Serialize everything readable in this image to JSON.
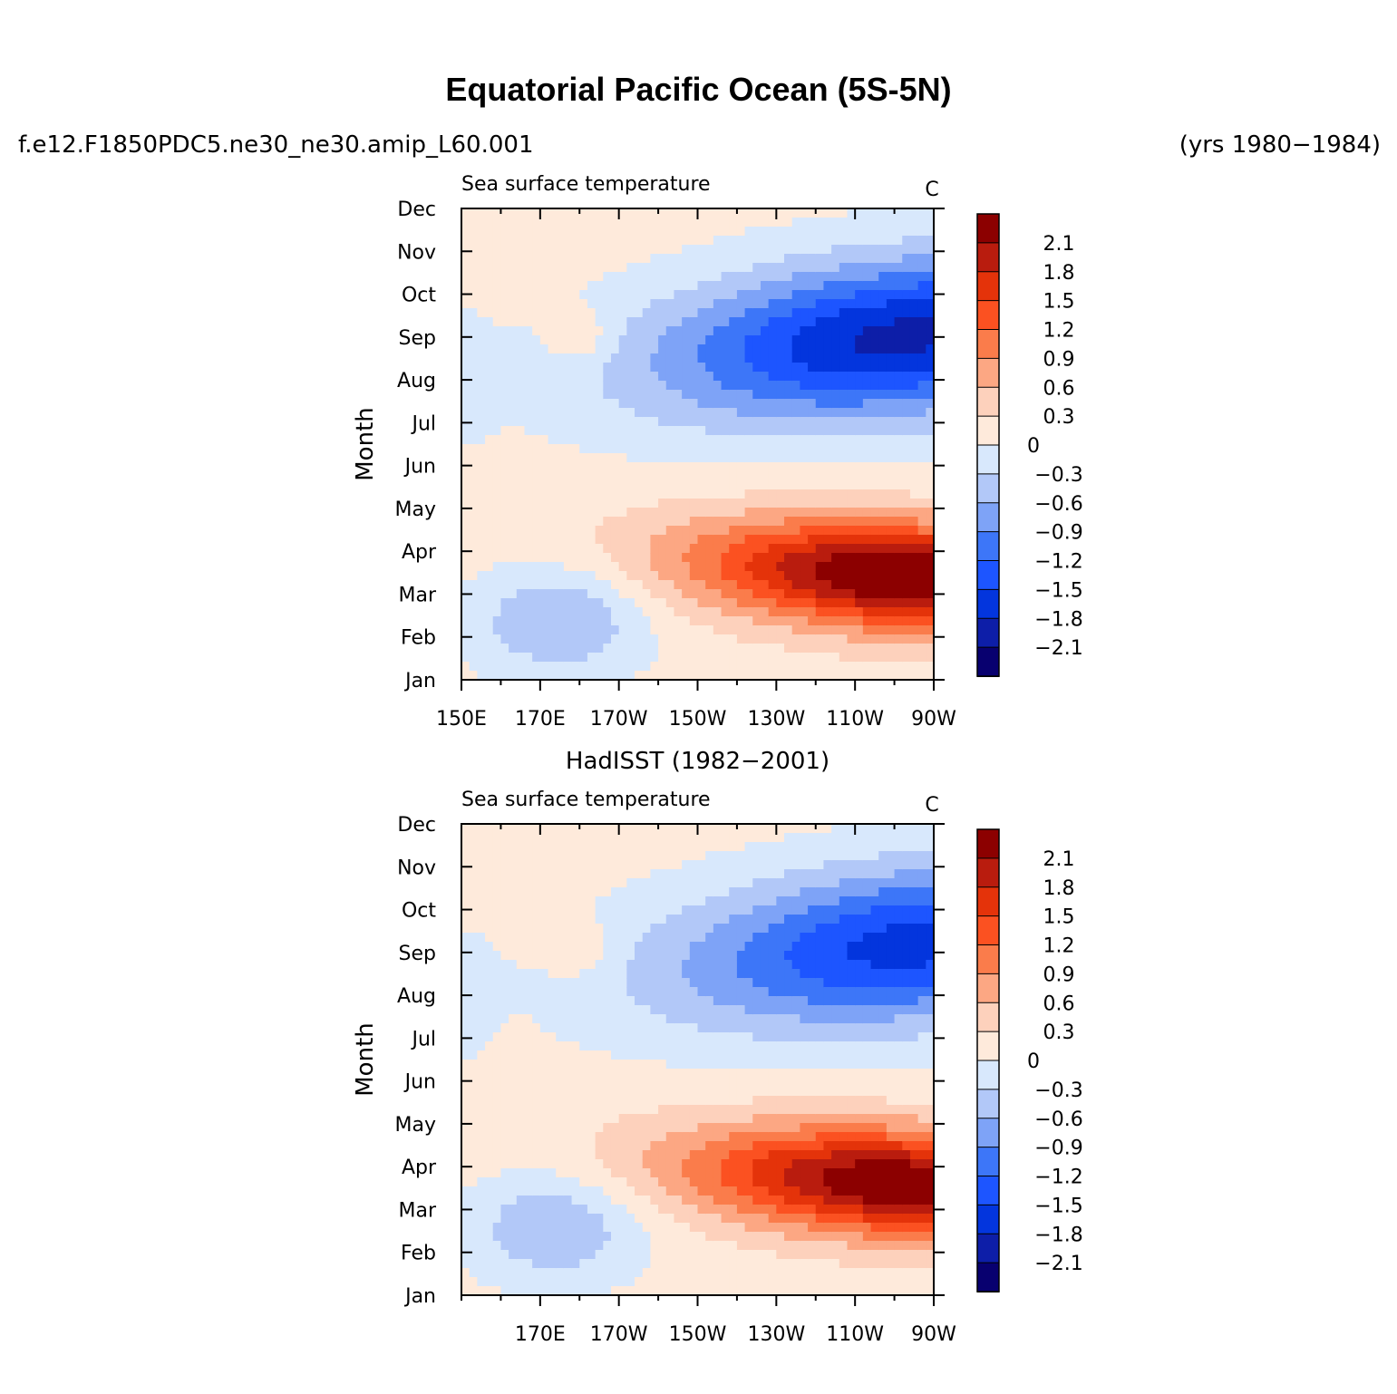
{
  "header": {
    "title": "Equatorial Pacific Ocean (5S-5N)",
    "case_name": "f.e12.F1850PDC5.ne30_ne30.amip_L60.001",
    "years": "(yrs 1980−1984)"
  },
  "colors": {
    "palette": [
      "#08006f",
      "#0d1ea8",
      "#0335dd",
      "#1d55ff",
      "#3d76f8",
      "#7ea3f7",
      "#b2c8f8",
      "#d8e8fc",
      "#feeadb",
      "#fdd1bc",
      "#fca783",
      "#fa7c4b",
      "#fb5121",
      "#e4330a",
      "#b91c0e",
      "#8c0000"
    ]
  },
  "chart_data": [
    {
      "type": "heatmap",
      "title": "",
      "left_string": "Sea surface temperature",
      "right_string": "C",
      "xlabel": "",
      "ylabel": "Month",
      "x_tick_labels": [
        "150E",
        "170E",
        "170W",
        "150W",
        "130W",
        "110W",
        "90W"
      ],
      "x_tick_values": [
        150,
        170,
        190,
        210,
        230,
        250,
        270
      ],
      "xlim": [
        150,
        270
      ],
      "y_tick_labels": [
        "Jan",
        "Feb",
        "Mar",
        "Apr",
        "May",
        "Jun",
        "Jul",
        "Aug",
        "Sep",
        "Oct",
        "Nov",
        "Dec"
      ],
      "ylim": [
        1,
        12
      ],
      "colorbar_labels": [
        "2.1",
        "1.8",
        "1.5",
        "1.2",
        "0.9",
        "0.6",
        "0.3",
        "0",
        "−0.3",
        "−0.6",
        "−0.9",
        "−1.2",
        "−1.5",
        "−1.8",
        "−2.1"
      ],
      "contour_levels": [
        -2.1,
        -1.8,
        -1.5,
        -1.2,
        -0.9,
        -0.6,
        -0.3,
        0,
        0.3,
        0.6,
        0.9,
        1.2,
        1.5,
        1.8,
        2.1
      ],
      "field_features": {
        "warm_max": {
          "lon": 263,
          "month": 3.4,
          "value": 2.4
        },
        "cool_min": {
          "lon": 262,
          "month": 9.0,
          "value": -2.0
        },
        "west_cool": {
          "lon": 175,
          "month": 2.4,
          "value": -0.75
        },
        "warm_spot": {
          "lon": 180,
          "month": 9.0,
          "value": 0.4
        }
      }
    },
    {
      "type": "heatmap",
      "title": "HadISST (1982−2001)",
      "left_string": "Sea surface temperature",
      "right_string": "C",
      "xlabel": "",
      "ylabel": "Month",
      "x_tick_labels": [
        "170E",
        "170W",
        "150W",
        "130W",
        "110W",
        "90W"
      ],
      "x_tick_values": [
        170,
        190,
        210,
        230,
        250,
        270
      ],
      "xlim": [
        150,
        270
      ],
      "y_tick_labels": [
        "Jan",
        "Feb",
        "Mar",
        "Apr",
        "May",
        "Jun",
        "Jul",
        "Aug",
        "Sep",
        "Oct",
        "Nov",
        "Dec"
      ],
      "ylim": [
        1,
        12
      ],
      "colorbar_labels": [
        "2.1",
        "1.8",
        "1.5",
        "1.2",
        "0.9",
        "0.6",
        "0.3",
        "0",
        "−0.3",
        "−0.6",
        "−0.9",
        "−1.2",
        "−1.5",
        "−1.8",
        "−2.1"
      ],
      "contour_levels": [
        -2.1,
        -1.8,
        -1.5,
        -1.2,
        -0.9,
        -0.6,
        -0.3,
        0,
        0.3,
        0.6,
        0.9,
        1.2,
        1.5,
        1.8,
        2.1
      ],
      "field_features": {
        "warm_max": {
          "lon": 264,
          "month": 3.6,
          "value": 2.3
        },
        "cool_min": {
          "lon": 264,
          "month": 9.2,
          "value": -1.75
        },
        "west_cool": {
          "lon": 174,
          "month": 2.6,
          "value": -0.7
        },
        "warm_spot": {
          "lon": 179,
          "month": 9.1,
          "value": 0.4
        }
      }
    }
  ]
}
